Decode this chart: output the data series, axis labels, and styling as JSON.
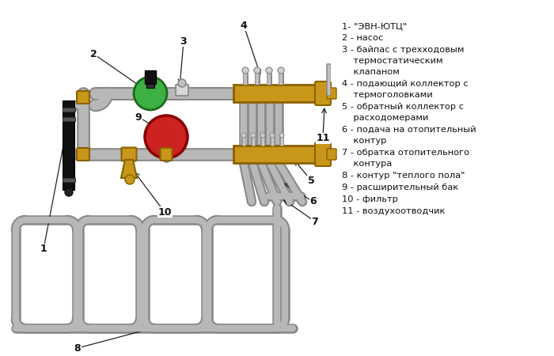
{
  "bg_color": "#ffffff",
  "pipe_color": "#b8b8b8",
  "pipe_edge": "#888888",
  "brass_color": "#c8971a",
  "brass_dark": "#8a6200",
  "black_color": "#1a1a1a",
  "green_color": "#3cb043",
  "red_color": "#cc2222",
  "label_color": "#1a1a1a",
  "line_color": "#333333",
  "legend_texts": [
    [
      "1- \"ЭВН-ЮТЦ\"",
      28
    ],
    [
      "2 - насос",
      43
    ],
    [
      "3 - байпас с трехходовым",
      58
    ],
    [
      "    термостатическим",
      72
    ],
    [
      "    клапаном",
      86
    ],
    [
      "4 - подающий коллектор с",
      101
    ],
    [
      "    термоголовками",
      115
    ],
    [
      "5 - обратный коллектор с",
      130
    ],
    [
      "    расходомерами",
      144
    ],
    [
      "6 - подача на отопительный",
      159
    ],
    [
      "    контур",
      173
    ],
    [
      "7 - обратка отопительного",
      188
    ],
    [
      "    контура",
      202
    ],
    [
      "8 - контур \"теплого пола\"",
      217
    ],
    [
      "9 - расширительный бак",
      232
    ],
    [
      "10 - фильтр",
      247
    ],
    [
      "11 - воздухоотводчик",
      262
    ]
  ]
}
